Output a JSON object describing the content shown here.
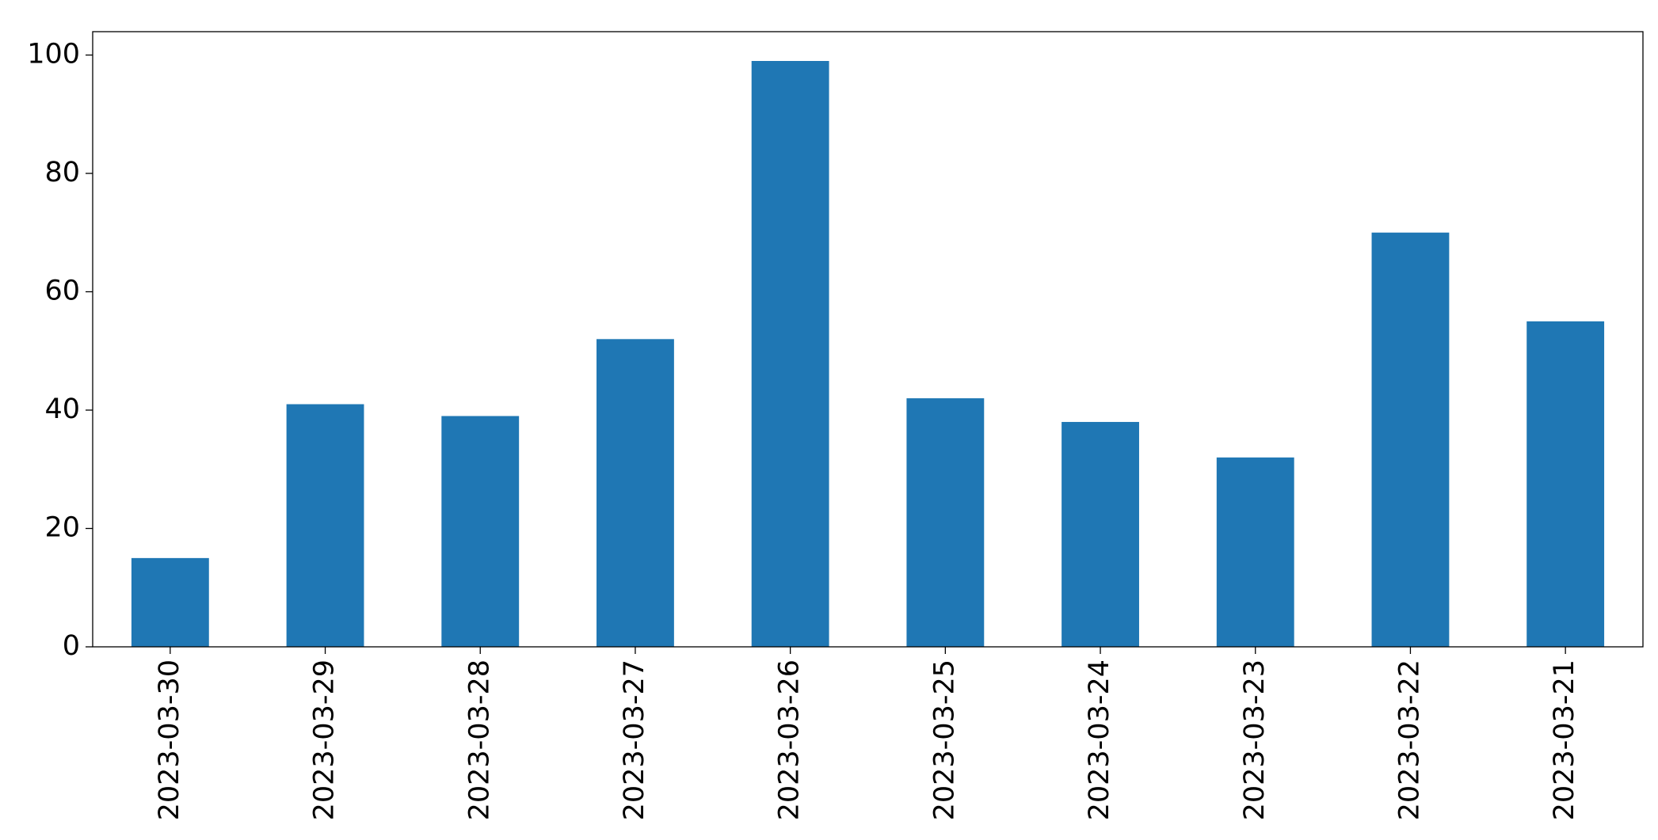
{
  "chart_data": {
    "type": "bar",
    "categories": [
      "2023-03-30",
      "2023-03-29",
      "2023-03-28",
      "2023-03-27",
      "2023-03-26",
      "2023-03-25",
      "2023-03-24",
      "2023-03-23",
      "2023-03-22",
      "2023-03-21"
    ],
    "values": [
      15,
      41,
      39,
      52,
      99,
      42,
      38,
      32,
      70,
      55
    ],
    "color": "#1f77b4",
    "ylim": [
      0,
      103.95
    ],
    "yticks": [
      0,
      20,
      40,
      60,
      80,
      100
    ],
    "grid": false
  }
}
